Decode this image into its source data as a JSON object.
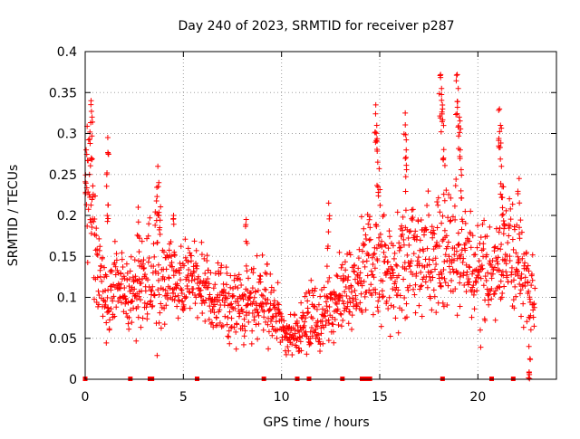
{
  "chart_data": {
    "type": "scatter",
    "title": "Day 240 of 2023, SRMTID for receiver p287",
    "xlabel": "GPS time / hours",
    "ylabel": "SRMTID / TECUs",
    "xlim": [
      0,
      24
    ],
    "ylim": [
      0,
      0.4
    ],
    "xticks": [
      0,
      5,
      10,
      15,
      20
    ],
    "xtick_labels": [
      "0",
      "5",
      "10",
      "15",
      "20"
    ],
    "yticks": [
      0,
      0.05,
      0.1,
      0.15,
      0.2,
      0.25,
      0.3,
      0.35,
      0.4
    ],
    "ytick_labels": [
      "0",
      "0.05",
      "0.1",
      "0.15",
      "0.2",
      "0.25",
      "0.3",
      "0.35",
      "0.4"
    ],
    "grid": true,
    "series_color": "#ff0000",
    "marker": "plus",
    "baseline_markers_x": [
      0.0,
      2.3,
      3.3,
      3.4,
      5.7,
      9.1,
      10.8,
      11.4,
      13.1,
      14.1,
      14.3,
      14.5,
      18.2,
      20.7,
      21.8
    ],
    "envelope": {
      "x": [
        0.0,
        0.3,
        0.6,
        1.0,
        1.5,
        2.0,
        2.5,
        3.0,
        3.5,
        4.0,
        4.5,
        5.0,
        5.5,
        6.0,
        6.5,
        7.0,
        7.5,
        8.0,
        8.5,
        9.0,
        9.5,
        10.0,
        10.5,
        11.0,
        11.5,
        12.0,
        12.5,
        13.0,
        13.5,
        14.0,
        14.5,
        15.0,
        15.5,
        16.0,
        16.5,
        17.0,
        17.5,
        18.0,
        18.5,
        19.0,
        19.5,
        20.0,
        20.5,
        21.0,
        21.5,
        22.0,
        22.5,
        22.9
      ],
      "mean": [
        0.22,
        0.24,
        0.15,
        0.1,
        0.12,
        0.11,
        0.1,
        0.11,
        0.13,
        0.13,
        0.12,
        0.12,
        0.13,
        0.11,
        0.1,
        0.09,
        0.09,
        0.09,
        0.1,
        0.1,
        0.09,
        0.06,
        0.05,
        0.06,
        0.08,
        0.07,
        0.09,
        0.1,
        0.11,
        0.12,
        0.15,
        0.14,
        0.13,
        0.14,
        0.16,
        0.15,
        0.15,
        0.14,
        0.15,
        0.16,
        0.13,
        0.14,
        0.12,
        0.13,
        0.16,
        0.15,
        0.12,
        0.11
      ],
      "spread": [
        0.05,
        0.06,
        0.04,
        0.03,
        0.03,
        0.03,
        0.03,
        0.04,
        0.05,
        0.04,
        0.03,
        0.03,
        0.03,
        0.03,
        0.03,
        0.03,
        0.03,
        0.03,
        0.03,
        0.03,
        0.03,
        0.02,
        0.02,
        0.02,
        0.03,
        0.03,
        0.03,
        0.03,
        0.03,
        0.03,
        0.05,
        0.04,
        0.04,
        0.04,
        0.05,
        0.04,
        0.04,
        0.04,
        0.05,
        0.05,
        0.04,
        0.04,
        0.04,
        0.04,
        0.05,
        0.04,
        0.04,
        0.03
      ]
    },
    "peaks": [
      {
        "x": 0.05,
        "y": 0.28
      },
      {
        "x": 0.3,
        "y": 0.34
      },
      {
        "x": 0.35,
        "y": 0.32
      },
      {
        "x": 1.15,
        "y": 0.295
      },
      {
        "x": 1.1,
        "y": 0.25
      },
      {
        "x": 2.7,
        "y": 0.21
      },
      {
        "x": 3.7,
        "y": 0.26
      },
      {
        "x": 3.75,
        "y": 0.24
      },
      {
        "x": 4.5,
        "y": 0.2
      },
      {
        "x": 8.2,
        "y": 0.195
      },
      {
        "x": 12.4,
        "y": 0.215
      },
      {
        "x": 14.8,
        "y": 0.335
      },
      {
        "x": 14.85,
        "y": 0.31
      },
      {
        "x": 14.9,
        "y": 0.265
      },
      {
        "x": 16.3,
        "y": 0.325
      },
      {
        "x": 16.35,
        "y": 0.28
      },
      {
        "x": 18.1,
        "y": 0.372
      },
      {
        "x": 18.15,
        "y": 0.355
      },
      {
        "x": 18.2,
        "y": 0.33
      },
      {
        "x": 18.25,
        "y": 0.27
      },
      {
        "x": 18.95,
        "y": 0.372
      },
      {
        "x": 19.0,
        "y": 0.355
      },
      {
        "x": 19.05,
        "y": 0.32
      },
      {
        "x": 19.1,
        "y": 0.28
      },
      {
        "x": 21.1,
        "y": 0.33
      },
      {
        "x": 21.15,
        "y": 0.31
      },
      {
        "x": 21.2,
        "y": 0.26
      },
      {
        "x": 21.3,
        "y": 0.235
      },
      {
        "x": 22.1,
        "y": 0.245
      },
      {
        "x": 22.6,
        "y": 0.04
      },
      {
        "x": 22.65,
        "y": 0.025
      }
    ],
    "n_points": 1500
  }
}
